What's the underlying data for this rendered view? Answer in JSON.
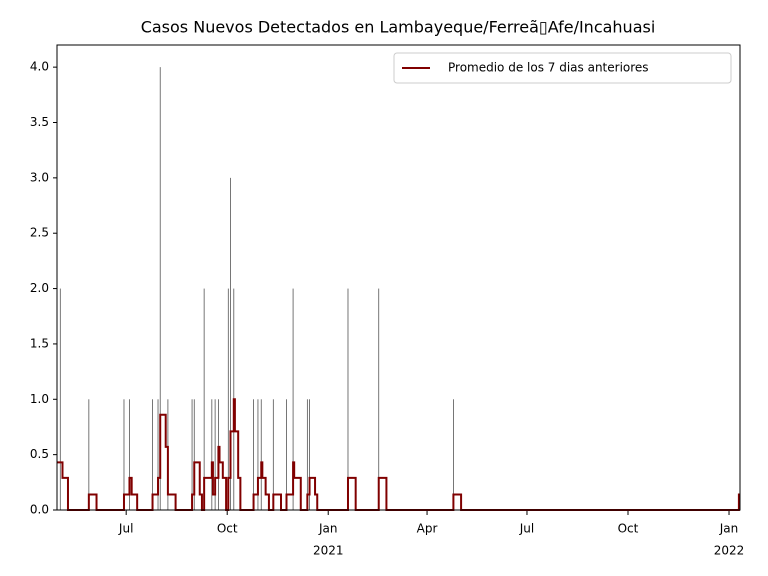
{
  "chart_data": {
    "type": "line",
    "title": "Casos Nuevos Detectados en Lambayeque/Ferreã▯Afe/Incahuasi",
    "xlim": [
      "2020-04-29",
      "2022-01-11"
    ],
    "xticks": [
      {
        "value": "2020-07-01",
        "label": "Jul"
      },
      {
        "value": "2020-10-01",
        "label": "Oct"
      },
      {
        "value": "2021-01-01",
        "label": "Jan",
        "year": "2021"
      },
      {
        "value": "2021-04-01",
        "label": "Apr"
      },
      {
        "value": "2021-07-01",
        "label": "Jul"
      },
      {
        "value": "2021-10-01",
        "label": "Oct"
      },
      {
        "value": "2022-01-01",
        "label": "Jan",
        "year": "2022"
      }
    ],
    "ylim": [
      0,
      4.2
    ],
    "yticks": [
      {
        "value": 0,
        "label": "0.0"
      },
      0.5,
      {
        "value": 1,
        "label": "1.0"
      },
      1.5,
      {
        "value": 2,
        "label": "2.0"
      },
      2.5,
      {
        "value": 3,
        "label": "3.0"
      },
      3.5,
      {
        "value": 4,
        "label": "4.0"
      }
    ],
    "legend": "upper right",
    "bars": {
      "color": "#555555",
      "x": [
        "2020-05-02",
        "2020-05-28",
        "2020-06-29",
        "2020-07-04",
        "2020-07-25",
        "2020-07-30",
        "2020-08-01",
        "2020-08-08",
        "2020-08-30",
        "2020-09-01",
        "2020-09-10",
        "2020-09-17",
        "2020-09-20",
        "2020-09-23",
        "2020-10-02",
        "2020-10-04",
        "2020-10-07",
        "2020-10-25",
        "2020-10-29",
        "2020-11-01",
        "2020-11-12",
        "2020-11-24",
        "2020-11-30",
        "2020-12-13",
        "2020-12-15",
        "2021-01-19",
        "2021-02-16",
        "2021-04-25"
      ],
      "values": [
        2,
        1,
        1,
        1,
        1,
        1,
        4,
        1,
        1,
        1,
        2,
        1,
        1,
        1,
        2,
        3,
        2,
        1,
        1,
        1,
        1,
        1,
        2,
        1,
        1,
        2,
        2,
        1
      ]
    },
    "series": [
      {
        "name": "Promedio de los 7 dias anteriores",
        "color": "#800000",
        "x": [
          "2020-04-29",
          "2020-05-04",
          "2020-05-09",
          "2020-05-28",
          "2020-06-04",
          "2020-06-29",
          "2020-07-04",
          "2020-07-06",
          "2020-07-11",
          "2020-07-25",
          "2020-07-30",
          "2020-08-01",
          "2020-08-06",
          "2020-08-08",
          "2020-08-15",
          "2020-08-30",
          "2020-09-01",
          "2020-09-06",
          "2020-09-08",
          "2020-09-10",
          "2020-09-17",
          "2020-09-18",
          "2020-09-20",
          "2020-09-23",
          "2020-09-24",
          "2020-09-27",
          "2020-09-30",
          "2020-10-02",
          "2020-10-04",
          "2020-10-07",
          "2020-10-08",
          "2020-10-11",
          "2020-10-13",
          "2020-10-25",
          "2020-10-29",
          "2020-11-01",
          "2020-11-02",
          "2020-11-05",
          "2020-11-08",
          "2020-11-12",
          "2020-11-19",
          "2020-11-24",
          "2020-11-30",
          "2020-12-01",
          "2020-12-07",
          "2020-12-13",
          "2020-12-15",
          "2020-12-20",
          "2020-12-22",
          "2021-01-19",
          "2021-01-26",
          "2021-02-16",
          "2021-02-23",
          "2021-04-25",
          "2021-05-02",
          "2022-01-10",
          "2022-01-11"
        ],
        "values": [
          0.43,
          0.29,
          0,
          0.14,
          0,
          0.14,
          0.29,
          0.14,
          0,
          0.14,
          0.29,
          0.86,
          0.57,
          0.14,
          0,
          0.14,
          0.43,
          0.14,
          0,
          0.29,
          0.43,
          0.14,
          0.29,
          0.57,
          0.43,
          0.29,
          0,
          0.29,
          0.71,
          1.0,
          0.71,
          0.29,
          0,
          0.14,
          0.29,
          0.43,
          0.29,
          0.14,
          0,
          0.14,
          0,
          0.14,
          0.43,
          0.29,
          0,
          0.14,
          0.29,
          0.14,
          0,
          0.29,
          0,
          0.29,
          0,
          0.14,
          0,
          0.14,
          0.14
        ]
      }
    ]
  }
}
